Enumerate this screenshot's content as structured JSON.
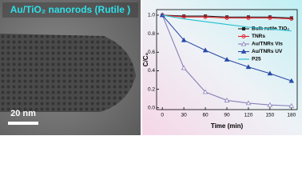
{
  "image_caption": {
    "title": "Au/TiO₂ nanorods (Rutile )",
    "scale_bar": "20 nm"
  },
  "chart_data": {
    "type": "line",
    "ylabel": "C/C₀",
    "xlabel": "Time (min)",
    "x": [
      0,
      30,
      60,
      90,
      120,
      150,
      180
    ],
    "series": [
      {
        "name": "Bulk rutile TiO₂",
        "color": "#222222",
        "marker": "square",
        "values": [
          1.0,
          0.99,
          0.99,
          0.98,
          0.98,
          0.98,
          0.97
        ]
      },
      {
        "name": "TNRs",
        "color": "#e8202a",
        "marker": "circle",
        "values": [
          1.0,
          0.98,
          0.98,
          0.97,
          0.97,
          0.97,
          0.96
        ]
      },
      {
        "name": "Au/TNRs Vis",
        "color": "#8a7fb8",
        "marker": "triangle-open",
        "values": [
          1.0,
          0.43,
          0.17,
          0.08,
          0.05,
          0.03,
          0.02
        ]
      },
      {
        "name": "Au/TNRs UV",
        "color": "#2a4aa8",
        "marker": "triangle",
        "values": [
          1.0,
          0.73,
          0.62,
          0.52,
          0.44,
          0.37,
          0.29
        ]
      },
      {
        "name": "P25",
        "color": "#22c0d0",
        "marker": "none",
        "values": [
          1.0,
          0.96,
          0.93,
          0.9,
          0.87,
          0.85,
          0.83
        ]
      }
    ],
    "xlim": [
      -8,
      188
    ],
    "xticks": [
      0,
      30,
      60,
      90,
      120,
      150,
      180
    ],
    "ylim": [
      -0.02,
      1.06
    ],
    "yticks": [
      {
        "value": 0,
        "label": "0.0"
      },
      0.2,
      0.4,
      0.6,
      0.8,
      {
        "value": 1,
        "label": "1.0"
      }
    ],
    "legend": "upper right"
  }
}
